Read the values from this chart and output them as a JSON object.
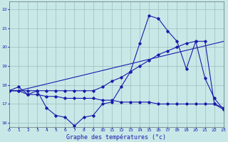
{
  "xlabel": "Graphe des températures (°c)",
  "bg_color": "#c8e8e8",
  "grid_color": "#9dbdbd",
  "line_color": "#1a1aaa",
  "x_ticks": [
    0,
    1,
    2,
    3,
    4,
    5,
    6,
    7,
    8,
    9,
    10,
    11,
    12,
    13,
    14,
    15,
    16,
    17,
    18,
    19,
    20,
    21,
    22,
    23
  ],
  "y_ticks": [
    16,
    17,
    18,
    19,
    20,
    21,
    22
  ],
  "xlim": [
    0,
    23
  ],
  "ylim": [
    15.8,
    22.4
  ],
  "line1_x": [
    0,
    1,
    2,
    3,
    4,
    5,
    6,
    7,
    8,
    9,
    10,
    11,
    12,
    13,
    14,
    15,
    16,
    17,
    18,
    19,
    20,
    21,
    22,
    23
  ],
  "line1_y": [
    17.7,
    17.9,
    17.5,
    17.7,
    16.8,
    16.4,
    16.3,
    15.85,
    16.3,
    16.4,
    17.0,
    17.1,
    17.9,
    18.7,
    20.2,
    21.65,
    21.5,
    20.85,
    20.3,
    18.85,
    20.3,
    18.35,
    17.3,
    16.7
  ],
  "line2_x": [
    0,
    1,
    23
  ],
  "line2_y": [
    17.7,
    17.7,
    20.3
  ],
  "line3_x": [
    0,
    1,
    2,
    3,
    4,
    5,
    6,
    7,
    8,
    9,
    10,
    11,
    12,
    13,
    14,
    15,
    16,
    17,
    18,
    19,
    20,
    21,
    22,
    23
  ],
  "line3_y": [
    17.7,
    17.7,
    17.7,
    17.7,
    17.7,
    17.7,
    17.7,
    17.7,
    17.7,
    17.7,
    17.9,
    18.2,
    18.4,
    18.7,
    19.0,
    19.3,
    19.6,
    19.8,
    20.0,
    20.2,
    20.3,
    20.3,
    17.0,
    16.7
  ],
  "line4_x": [
    0,
    1,
    2,
    3,
    4,
    5,
    6,
    7,
    8,
    9,
    10,
    11,
    12,
    13,
    14,
    15,
    16,
    17,
    18,
    19,
    20,
    21,
    22,
    23
  ],
  "line4_y": [
    17.7,
    17.7,
    17.5,
    17.5,
    17.4,
    17.4,
    17.3,
    17.3,
    17.3,
    17.3,
    17.2,
    17.2,
    17.1,
    17.1,
    17.1,
    17.1,
    17.0,
    17.0,
    17.0,
    17.0,
    17.0,
    17.0,
    17.0,
    16.8
  ]
}
